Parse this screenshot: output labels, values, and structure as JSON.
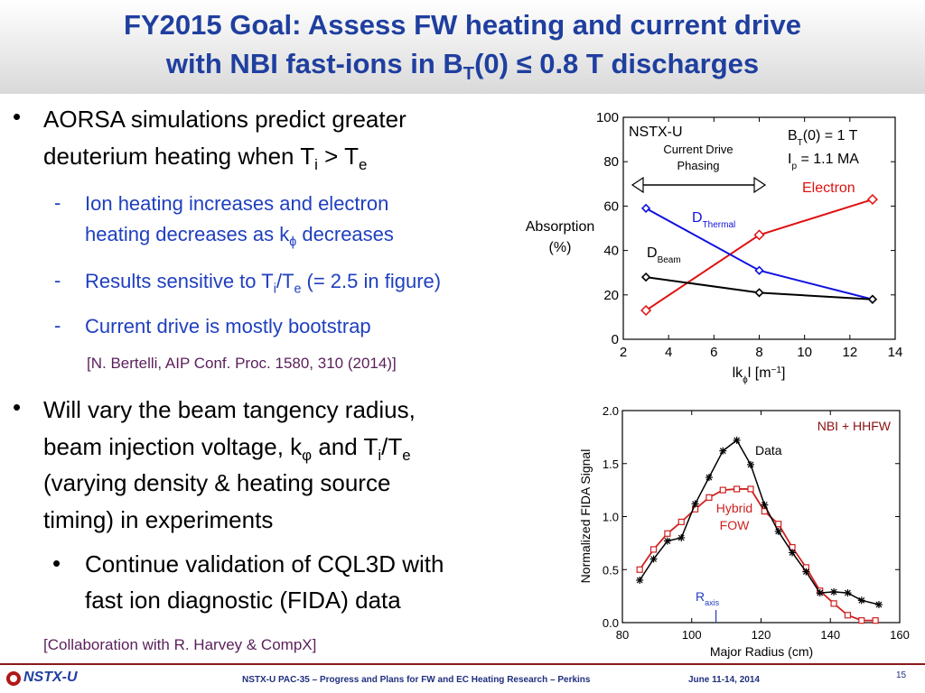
{
  "title": {
    "line1": "FY2015 Goal: Assess FW heating and current drive",
    "line2_a": "with NBI fast-ions in B",
    "line2_sub": "T",
    "line2_b": "(0) ≤ 0.8 T discharges"
  },
  "bullets": {
    "b1_l1": "AORSA simulations predict greater",
    "b1_l2_a": "deuterium heating when T",
    "b1_l2_sub1": "i",
    "b1_l2_b": " > T",
    "b1_l2_sub2": "e",
    "s1_l1": "Ion heating increases and electron",
    "s1_l2_a": "heating decreases as k",
    "s1_l2_sub": "ϕ",
    "s1_l2_b": " decreases",
    "s2_a": "Results sensitive to T",
    "s2_sub1": "i",
    "s2_b": "/T",
    "s2_sub2": "e",
    "s2_c": " (= 2.5 in figure)",
    "s3": "Current drive is mostly bootstrap",
    "ref1": "[N. Bertelli, AIP Conf. Proc. 1580, 310 (2014)]",
    "b2_l1": "Will vary the beam tangency radius,",
    "b2_l2_a": "beam injection voltage, k",
    "b2_l2_sub": "φ",
    "b2_l2_b": " and T",
    "b2_l2_sub2": "i",
    "b2_l2_c": "/T",
    "b2_l2_sub3": "e",
    "b2_l3": "(varying density & heating source",
    "b2_l4": "timing) in experiments",
    "b3_l1": "Continue validation of CQL3D with",
    "b3_l2": "fast ion diagnostic (FIDA) data",
    "ref2": "[Collaboration with R. Harvey & CompX]",
    "bullet_mark": "•",
    "dash_mark": "-"
  },
  "footer": {
    "logo": "NSTX-U",
    "center": "NSTX-U PAC-35 – Progress and Plans for FW and EC Heating Research – Perkins",
    "date": "June 11-14, 2014",
    "page": "15"
  },
  "colors": {
    "title": "#1f3f9f",
    "sub_bullet": "#1f3fbf",
    "electron": "#e01010",
    "d_thermal": "#1010e0",
    "d_beam": "#000000",
    "fida_data": "#000000",
    "fida_fow": "#d02020"
  },
  "chart_data": [
    {
      "type": "line",
      "annotations": {
        "device": "NSTX-U",
        "phasing": "Current Drive Phasing",
        "bt_a": "B",
        "bt_sub": "T",
        "bt_b": "(0) = 1 T",
        "ip_a": "I",
        "ip_sub": "p",
        "ip_b": " = 1.1 MA"
      },
      "ylabel_l1": "Absorption",
      "ylabel_l2": "(%)",
      "xlabel_a": "lk",
      "xlabel_sub": "ϕ",
      "xlabel_b": "l [m",
      "xlabel_sup": "−1",
      "xlabel_c": "]",
      "xlim": [
        2,
        14
      ],
      "ylim": [
        0,
        100
      ],
      "xticks": [
        "2",
        "4",
        "6",
        "8",
        "10",
        "12",
        "14"
      ],
      "yticks": [
        "0",
        "20",
        "40",
        "60",
        "80",
        "100"
      ],
      "series": [
        {
          "name": "Electron",
          "x": [
            3,
            8,
            13
          ],
          "values": [
            13,
            47,
            63
          ],
          "marker": "square"
        },
        {
          "name": "D",
          "name_sub": "Thermal",
          "x": [
            3,
            8,
            13
          ],
          "values": [
            59,
            31,
            18
          ],
          "marker": "diamond"
        },
        {
          "name": "D",
          "name_sub": "Beam",
          "x": [
            3,
            8,
            13
          ],
          "values": [
            28,
            21,
            18
          ],
          "marker": "diamond"
        }
      ]
    },
    {
      "type": "line",
      "title": "NBI + HHFW",
      "ylabel": "Normalized FIDA Signal",
      "xlabel": "Major Radius (cm)",
      "xlim": [
        80,
        160
      ],
      "ylim": [
        0.0,
        2.0
      ],
      "xticks": [
        "80",
        "100",
        "120",
        "140",
        "160"
      ],
      "yticks": [
        "0.0",
        "0.5",
        "1.0",
        "1.5",
        "2.0"
      ],
      "raxis_a": "R",
      "raxis_sub": "axis",
      "raxis_value": 107,
      "series": [
        {
          "name": "Data",
          "x": [
            85,
            89,
            93,
            97,
            101,
            105,
            109,
            113,
            117,
            121,
            125,
            129,
            133,
            137,
            141,
            145,
            149,
            154
          ],
          "values": [
            0.4,
            0.6,
            0.77,
            0.8,
            1.12,
            1.37,
            1.62,
            1.72,
            1.49,
            1.11,
            0.86,
            0.66,
            0.48,
            0.28,
            0.29,
            0.28,
            0.21,
            0.17
          ]
        },
        {
          "name": "Hybrid FOW",
          "x": [
            85,
            89,
            93,
            97,
            101,
            105,
            109,
            113,
            117,
            121,
            125,
            129,
            133,
            137,
            141,
            145,
            149,
            153
          ],
          "values": [
            0.5,
            0.69,
            0.84,
            0.95,
            1.07,
            1.18,
            1.25,
            1.26,
            1.26,
            1.05,
            0.93,
            0.71,
            0.52,
            0.3,
            0.18,
            0.07,
            0.02,
            0.02
          ]
        }
      ]
    }
  ]
}
